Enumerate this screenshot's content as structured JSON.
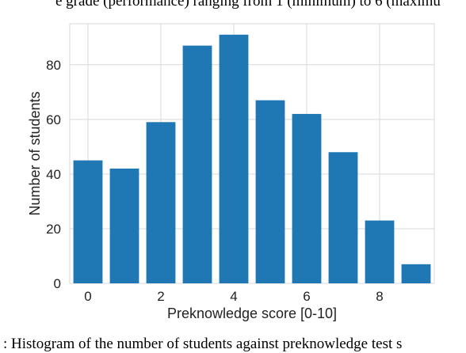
{
  "caption_top": "e grade (performance) ranging from 1 (minimum) to 6 (maximu",
  "caption_bottom": ": Histogram of the number of students against preknowledge test s",
  "chart_data": {
    "type": "bar",
    "categories": [
      0,
      1,
      2,
      3,
      4,
      5,
      6,
      7,
      8,
      9
    ],
    "values": [
      45,
      42,
      59,
      87,
      91,
      67,
      62,
      48,
      23,
      7
    ],
    "xlabel": "Preknowledge score [0-10]",
    "ylabel": "Number of students",
    "x_ticks": [
      0,
      2,
      4,
      6,
      8
    ],
    "y_ticks": [
      0,
      20,
      40,
      60,
      80
    ],
    "xlim": [
      -0.5,
      9.5
    ],
    "ylim": [
      0,
      95
    ],
    "grid": true,
    "bar_color": "#1f77b4",
    "grid_color": "#d9d9d9"
  }
}
